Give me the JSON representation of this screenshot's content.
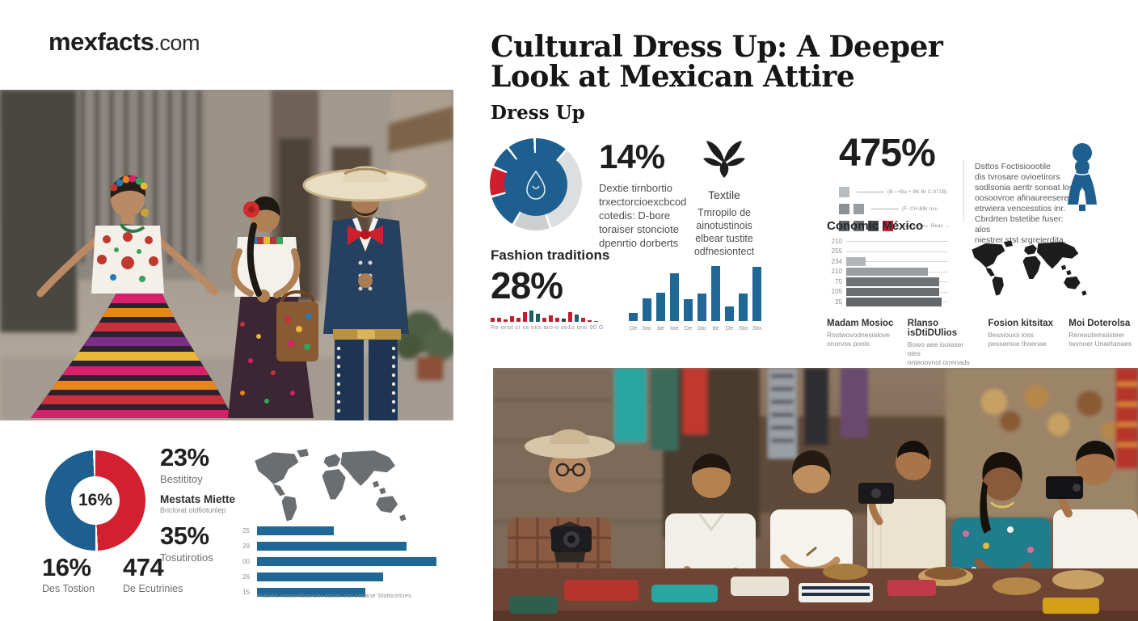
{
  "brand": {
    "name": "mexfacts",
    "tld": ".com"
  },
  "header": {
    "title_line1": "Cultural Dress Up: A Deeper",
    "title_line2": "Look at Mexican Attire",
    "subtitle": "Dress Up"
  },
  "colors": {
    "accent_blue": "#1e5f90",
    "accent_red": "#cf1f2d",
    "bar_blue": "#1f6795",
    "teal": "#1e5e66",
    "light_gray": "#d9dbdd",
    "map_gray": "#6b6e70",
    "map_black": "#1d1d1e"
  },
  "stats_row": {
    "stat14": {
      "value": "14%",
      "desc_lines": [
        "Dextie tirnbortio",
        "trxectorcioexcbcod",
        "cotedis: D-bore",
        "toraiser stonciote",
        "dpenrtio dorberts"
      ]
    },
    "textile": {
      "title": "Textile",
      "desc_lines": [
        "Tmropilo de",
        "ainotustinois",
        "elbear tustite",
        "odfnesiontect"
      ]
    },
    "stat475": {
      "value": "475%",
      "legend_rows": [
        {
          "squares": [
            "#b9bcbe"
          ],
          "note": "(B—+Ba + BK Br C-071B)"
        },
        {
          "squares": [
            "#8d9092",
            "#9a9da0"
          ],
          "note": "(F- CH-BBr nsu"
        },
        {
          "squares": [
            "#5f6264",
            "#6b6e70",
            "#45484a",
            "#cf1f2d"
          ],
          "note": "Reas →"
        }
      ]
    },
    "side_paragraph_lines": [
      "Dsttos Foctisioootile",
      "dis tvrosare ovioetirors",
      "sodlsonia aeritr sonoat los",
      "oosoovroe afinaureeseres",
      "etrwiera vencesstios inr.",
      "Cbrdrten bstetibe fuser: alos",
      "niestrer stst srgreierdita."
    ]
  },
  "fashion": {
    "label": "Fashion traditions",
    "value": "28%",
    "spark_caption": "Re onst cr cs ons aro-o so1o ono 00 G"
  },
  "conomic": {
    "title": "Conomic México",
    "footers": [
      {
        "title": "Madam Mosioc",
        "lines": [
          "Rostwovodnesialove",
          "onorvos ponls"
        ]
      },
      {
        "title": "Rlanso isDtiDUlios",
        "lines": [
          "Bowo aee isoiaser otes",
          "onieoovnol orrenads"
        ]
      },
      {
        "title": "Fosion kitsitax",
        "lines": [
          "Bessiouioi ioss",
          "pessemoe thoenae"
        ]
      },
      {
        "title": "Moi Doterolsa",
        "lines": [
          "Rereautemsiisteer",
          "twvnoer Unairtanaes"
        ]
      }
    ]
  },
  "bottom_left": {
    "stat23": {
      "value": "23%",
      "label": "Bestititoy"
    },
    "mestats": {
      "title": "Mestats Miette",
      "sub": "Briclorat oldfiotunlep"
    },
    "stat35": {
      "value": "35%",
      "label": "Tosutirotios"
    },
    "stat16": {
      "value": "16%",
      "label": "Des Tostion"
    },
    "stat474": {
      "value": "474",
      "label": "De Ecutrinies"
    }
  },
  "chart_data": [
    {
      "id": "attire_donut",
      "type": "pie",
      "unit": "degrees_estimated",
      "center_icon": "drop-icon",
      "segments": [
        {
          "deg": 40,
          "color": "#1e5f90"
        },
        {
          "deg": 117,
          "color": "#dcdee0"
        },
        {
          "deg": 45,
          "color": "#cdcfd1"
        },
        {
          "deg": 42,
          "color": "#1e5f90"
        },
        {
          "deg": 35,
          "color": "#cf1f2d"
        },
        {
          "deg": 27,
          "color": "#1e5f90"
        },
        {
          "deg": 33,
          "color": "#1e5f90"
        }
      ]
    },
    {
      "id": "spark28",
      "type": "bar",
      "values_unit": "percent_of_max",
      "values": [
        22,
        22,
        14,
        28,
        20,
        48,
        60,
        40,
        22,
        34,
        22,
        16,
        52,
        36,
        20,
        8,
        6
      ],
      "colors": [
        "#c01f2e",
        "#c01f2e",
        "#c01f2e",
        "#c01f2e",
        "#c01f2e",
        "#c01f2e",
        "#1e5e66",
        "#1e5e66",
        "#c01f2e",
        "#c01f2e",
        "#c01f2e",
        "#3a3d3f",
        "#c01f2e",
        "#1e5e66",
        "#c01f2e",
        "#c01f2e",
        "#c01f2e"
      ]
    },
    {
      "id": "fashion_bars",
      "type": "bar",
      "values_unit": "percent_of_max",
      "categories": [
        "De",
        "bto",
        "be",
        "toe",
        "De",
        "bto",
        "tte",
        "De",
        "Sto",
        "Sto"
      ],
      "values": [
        14,
        41,
        51,
        86,
        39,
        49,
        99,
        26,
        49,
        97
      ],
      "color": "#1f6795"
    },
    {
      "id": "conomic_mexico",
      "type": "bar",
      "orientation": "horizontal",
      "values_unit": "percent_of_track",
      "categories": [
        "210",
        "255",
        "234",
        "210",
        "75",
        "105",
        "25"
      ],
      "values": [
        0,
        0,
        19,
        80,
        91,
        91,
        94
      ],
      "colors": [
        "#c7c9cb",
        "#c7c9cb",
        "#b3b6b8",
        "#9a9da0",
        "#6f7274",
        "#6a6d6f",
        "#636668"
      ]
    },
    {
      "id": "split_donut",
      "type": "pie",
      "unit": "degrees_estimated",
      "center_label": "16%",
      "segments": [
        {
          "deg": 177,
          "color": "#d22030",
          "label": "red-half"
        },
        {
          "deg": 177,
          "color": "#1e5f90",
          "label": "blue-half"
        }
      ]
    },
    {
      "id": "bottom_left_bars",
      "type": "bar",
      "orientation": "horizontal",
      "values_unit": "percent_of_track",
      "categories": [
        "25",
        "29",
        "00",
        "26",
        "15"
      ],
      "values": [
        39,
        76,
        91,
        64,
        55
      ],
      "color": "#1f6795",
      "caption": "Fraurtic rssaonfsauioar ossas sicr sasane Sfottictrtnes"
    }
  ]
}
